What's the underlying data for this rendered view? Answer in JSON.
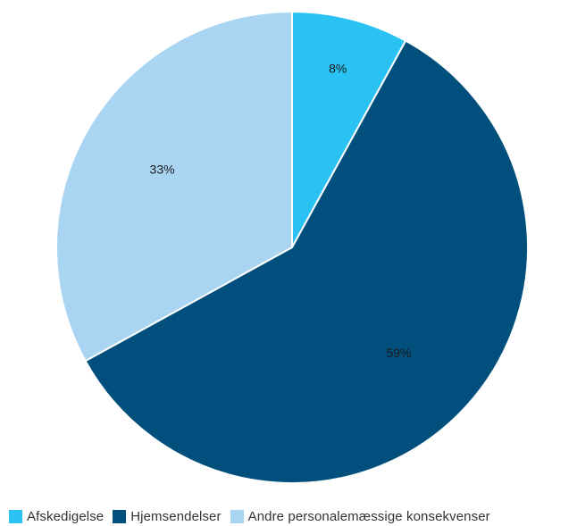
{
  "chart_data": {
    "type": "pie",
    "start_angle_deg": 0,
    "direction": "clockwise",
    "legend_position": "bottom-left",
    "slices": [
      {
        "name": "Afskedigelse",
        "value": 8,
        "label": "8%",
        "color": "#29c2f2"
      },
      {
        "name": "Hjemsendelser",
        "value": 59,
        "label": "59%",
        "color": "#004f7d"
      },
      {
        "name": "Andre personalemæssige konsekvenser",
        "value": 33,
        "label": "33%",
        "color": "#a9d5f3"
      }
    ]
  }
}
